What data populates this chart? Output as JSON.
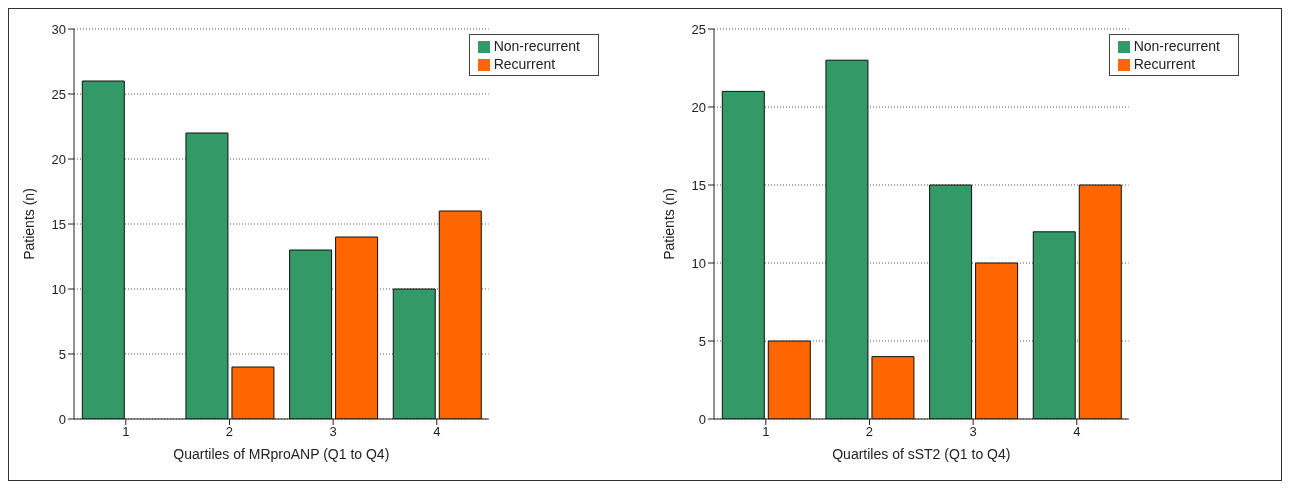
{
  "chart_data": [
    {
      "type": "bar",
      "xlabel": "Quartiles  of MRproANP (Q1 to Q4)",
      "ylabel": "Patients (n)",
      "categories": [
        "1",
        "2",
        "3",
        "4"
      ],
      "series": [
        {
          "name": "Non-recurrent",
          "color": "#339966",
          "values": [
            26,
            22,
            13,
            10
          ]
        },
        {
          "name": "Recurrent",
          "color": "#ff6600",
          "values": [
            0,
            4,
            14,
            16
          ]
        }
      ],
      "ylim": [
        0,
        30
      ],
      "yticks": [
        0,
        5,
        10,
        15,
        20,
        25,
        30
      ],
      "grid": "y",
      "legend": "top right"
    },
    {
      "type": "bar",
      "xlabel": "Quartiles of sST2 (Q1 to Q4)",
      "ylabel": "Patients (n)",
      "categories": [
        "1",
        "2",
        "3",
        "4"
      ],
      "series": [
        {
          "name": "Non-recurrent",
          "color": "#339966",
          "values": [
            21,
            23,
            15,
            12
          ]
        },
        {
          "name": "Recurrent",
          "color": "#ff6600",
          "values": [
            5,
            4,
            10,
            15
          ]
        }
      ],
      "ylim": [
        0,
        25
      ],
      "yticks": [
        0,
        5,
        10,
        15,
        20,
        25
      ],
      "grid": "y",
      "legend": "top right"
    }
  ]
}
